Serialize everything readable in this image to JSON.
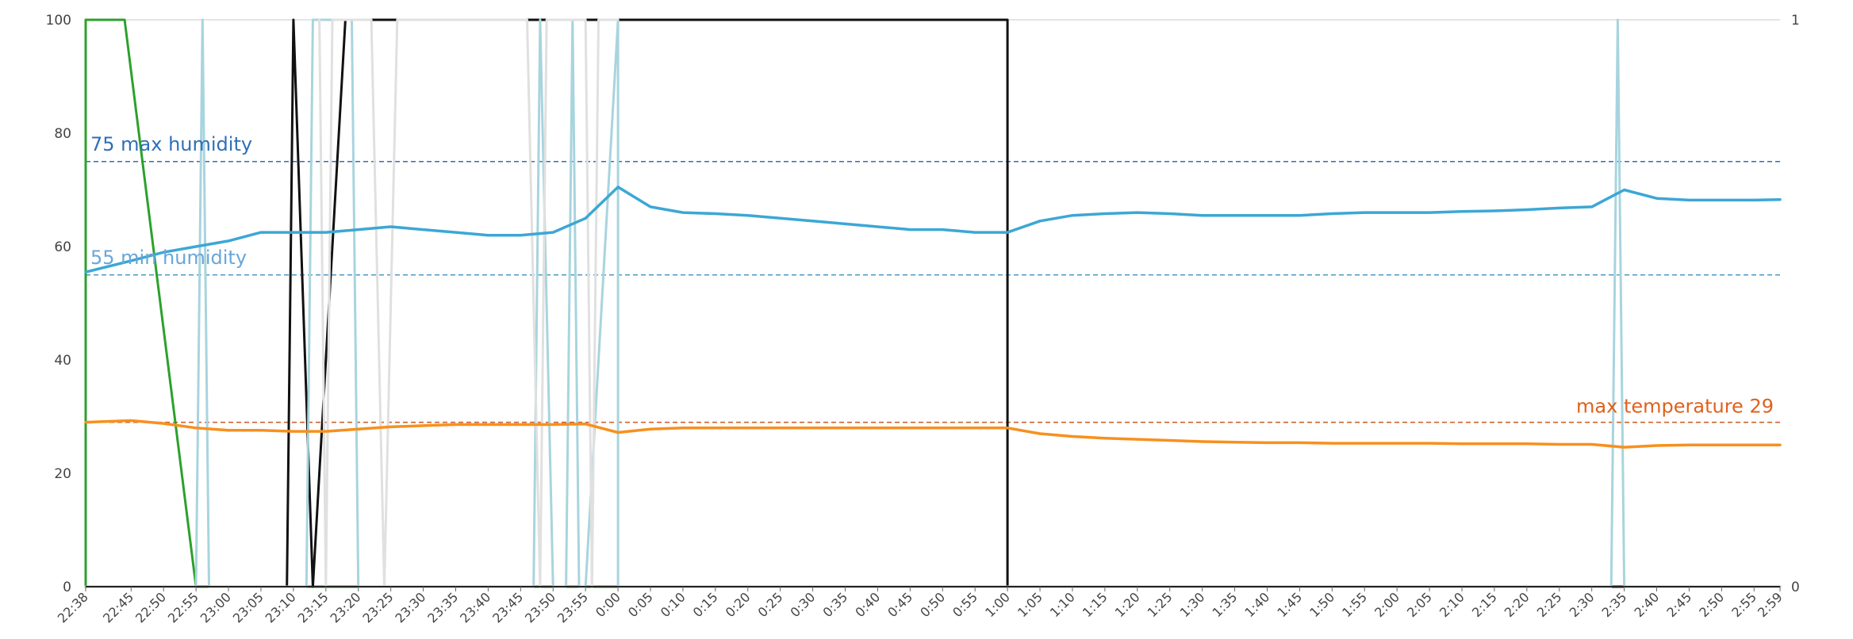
{
  "chart_data": {
    "type": "line",
    "x": [
      "22:38",
      "22:45",
      "22:50",
      "22:55",
      "23:00",
      "23:05",
      "23:10",
      "23:15",
      "23:20",
      "23:25",
      "23:30",
      "23:35",
      "23:40",
      "23:45",
      "23:50",
      "23:55",
      "0:00",
      "0:05",
      "0:10",
      "0:15",
      "0:20",
      "0:25",
      "0:30",
      "0:35",
      "0:40",
      "0:45",
      "0:50",
      "0:55",
      "1:00",
      "1:05",
      "1:10",
      "1:15",
      "1:20",
      "1:25",
      "1:30",
      "1:35",
      "1:40",
      "1:45",
      "1:50",
      "1:55",
      "2:00",
      "2:05",
      "2:10",
      "2:15",
      "2:20",
      "2:25",
      "2:30",
      "2:35",
      "2:40",
      "2:45",
      "2:50",
      "2:55",
      "2:59"
    ],
    "x_ticks": [
      "22:38",
      "22:45",
      "22:50",
      "22:55",
      "23:00",
      "23:05",
      "23:10",
      "23:15",
      "23:20",
      "23:25",
      "23:30",
      "23:35",
      "23:40",
      "23:45",
      "23:50",
      "23:55",
      "0:00",
      "0:05",
      "0:10",
      "0:15",
      "0:20",
      "0:25",
      "0:30",
      "0:35",
      "0:40",
      "0:45",
      "0:50",
      "0:55",
      "1:00",
      "1:05",
      "1:10",
      "1:15",
      "1:20",
      "1:25",
      "1:30",
      "1:35",
      "1:40",
      "1:45",
      "1:50",
      "1:55",
      "2:00",
      "2:05",
      "2:10",
      "2:15",
      "2:20",
      "2:25",
      "2:30",
      "2:35",
      "2:40",
      "2:45",
      "2:50",
      "2:55",
      "2:59"
    ],
    "y_ticks": [
      "0",
      "20",
      "40",
      "60",
      "80",
      "100"
    ],
    "ylim": [
      0,
      100
    ],
    "y2_ticks": [
      "0",
      "1"
    ],
    "y2lim": [
      0,
      1
    ],
    "grid": "top line only",
    "series": [
      {
        "color": "#3ca7d5",
        "axis": "left",
        "values": [
          55.5,
          57.5,
          59,
          60,
          61,
          62.5,
          62.5,
          62.5,
          63,
          63.5,
          63,
          62.5,
          62,
          62,
          62.5,
          65,
          70.5,
          67,
          66,
          65.8,
          65.5,
          65,
          64.5,
          64,
          63.5,
          63,
          63,
          62.5,
          62.5,
          64.5,
          65.5,
          65.8,
          66,
          65.8,
          65.5,
          65.5,
          65.5,
          65.5,
          65.8,
          66,
          66,
          66,
          66.2,
          66.3,
          66.5,
          66.8,
          67,
          70,
          68.5,
          68.2,
          68.2,
          68.2,
          68.3
        ]
      },
      {
        "color": "#f7901e",
        "axis": "left",
        "values": [
          29,
          29.3,
          28.8,
          28,
          27.6,
          27.6,
          27.4,
          27.4,
          27.8,
          28.2,
          28.4,
          28.6,
          28.6,
          28.6,
          28.6,
          28.7,
          27.2,
          27.8,
          28,
          28,
          28,
          28,
          28,
          28,
          28,
          28,
          28,
          28,
          28,
          27,
          26.5,
          26.2,
          26,
          25.8,
          25.6,
          25.5,
          25.4,
          25.4,
          25.3,
          25.3,
          25.3,
          25.3,
          25.2,
          25.2,
          25.2,
          25.1,
          25.1,
          24.6,
          24.9,
          25,
          25,
          25,
          25
        ]
      },
      {
        "color": "#2ca02c",
        "axis": "right",
        "points": [
          [
            "22:38",
            0
          ],
          [
            "22:38",
            1
          ],
          [
            "22:44",
            1
          ],
          [
            "22:55",
            0
          ],
          [
            "0:00",
            0
          ]
        ]
      },
      {
        "color": "#111111",
        "axis": "right",
        "points": [
          [
            "23:09",
            0
          ],
          [
            "23:10",
            1
          ],
          [
            "23:13",
            0
          ],
          [
            "23:18",
            1
          ],
          [
            "23:20",
            1
          ],
          [
            "23:22",
            1
          ],
          [
            "23:48",
            1
          ],
          [
            "23:52",
            1
          ],
          [
            "0:00",
            1
          ],
          [
            "1:00",
            1
          ],
          [
            "1:00",
            0
          ],
          [
            "2:59",
            0
          ]
        ]
      },
      {
        "color": "#a8d4de",
        "axis": "right",
        "points": [
          [
            "22:38",
            0
          ],
          [
            "22:55",
            0
          ],
          [
            "22:56",
            1
          ],
          [
            "22:57",
            0
          ],
          [
            "23:12",
            0
          ],
          [
            "23:13",
            1
          ],
          [
            "23:19",
            1
          ],
          [
            "23:20",
            0
          ],
          [
            "23:47",
            0
          ],
          [
            "23:48",
            1
          ],
          [
            "23:50",
            0
          ],
          [
            "23:52",
            0
          ],
          [
            "23:53",
            1
          ],
          [
            "23:54",
            0
          ],
          [
            "23:55",
            0
          ],
          [
            "0:00",
            1
          ],
          [
            "0:00",
            0
          ],
          [
            "2:33",
            0
          ],
          [
            "2:34",
            1
          ],
          [
            "2:35",
            0
          ],
          [
            "2:59",
            0
          ]
        ]
      },
      {
        "color": "#e0e0e0",
        "axis": "right",
        "points": [
          [
            "23:14",
            1
          ],
          [
            "23:15",
            0
          ],
          [
            "23:16",
            1
          ],
          [
            "23:22",
            1
          ],
          [
            "23:24",
            0
          ],
          [
            "23:26",
            1
          ],
          [
            "23:46",
            1
          ],
          [
            "23:48",
            0
          ],
          [
            "23:49",
            1
          ],
          [
            "23:55",
            1
          ],
          [
            "23:56",
            0
          ],
          [
            "23:57",
            1
          ],
          [
            "0:00",
            1
          ]
        ]
      }
    ],
    "annotations": [
      {
        "label": "75 max humidity",
        "value": 75,
        "axis": "left",
        "color": "#2f6fb7",
        "text_color": "#2f6fb7",
        "position": "left"
      },
      {
        "label": "55 min humidity",
        "value": 55,
        "axis": "left",
        "color": "#4f9ac4",
        "text_color": "#6aa6d8",
        "position": "left"
      },
      {
        "label": "max temperature 29",
        "value": 29,
        "axis": "left",
        "color": "#d0632c",
        "text_color": "#e0601c",
        "position": "right"
      }
    ]
  }
}
